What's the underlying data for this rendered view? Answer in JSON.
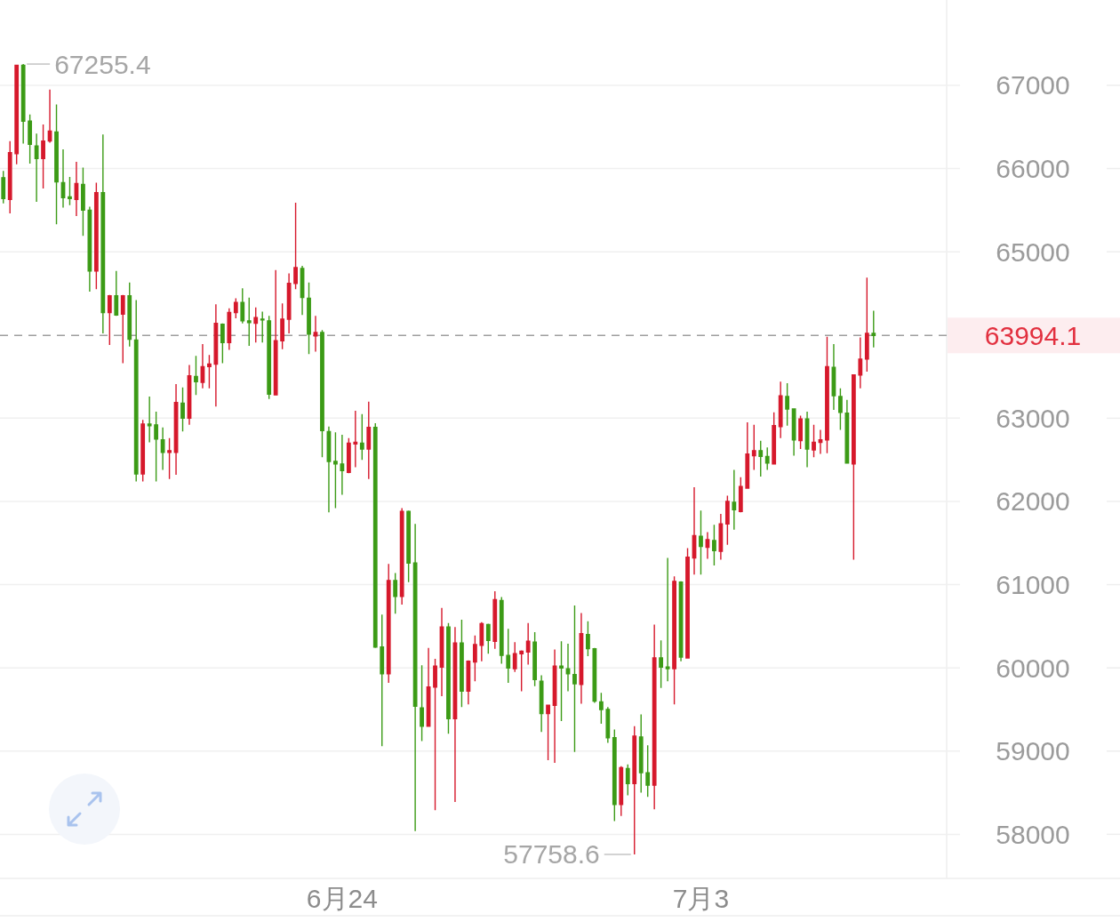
{
  "chart_data": {
    "type": "candlestick",
    "categories": [
      null,
      null,
      null,
      null,
      null,
      null,
      null,
      null,
      null,
      null,
      null,
      null,
      null,
      null,
      null,
      null,
      null,
      null,
      null,
      null,
      null,
      null,
      null,
      null,
      null,
      null,
      null,
      null,
      null,
      null,
      null,
      null,
      null,
      null,
      null,
      null,
      null,
      null,
      null,
      null,
      null,
      null,
      null,
      null,
      null,
      null,
      null,
      null,
      null,
      null,
      null,
      "6月24",
      null,
      null,
      null,
      null,
      null,
      null,
      null,
      null,
      null,
      null,
      null,
      null,
      null,
      null,
      null,
      null,
      null,
      null,
      null,
      null,
      null,
      null,
      null,
      null,
      null,
      null,
      null,
      null,
      null,
      null,
      null,
      null,
      null,
      null,
      null,
      null,
      null,
      null,
      null,
      null,
      null,
      null,
      null,
      null,
      null,
      null,
      null,
      null,
      null,
      null,
      null,
      null,
      null,
      "7月3",
      null,
      null,
      null,
      null,
      null,
      null,
      null,
      null,
      null,
      null,
      null,
      null,
      null,
      null,
      null,
      null,
      null,
      null,
      null,
      null,
      null,
      null,
      null,
      null,
      null,
      null
    ],
    "ohlc": [
      [
        65890,
        65970,
        65580,
        65640
      ],
      [
        65630,
        66330,
        65460,
        66190
      ],
      [
        66180,
        67240,
        66050,
        67240
      ],
      [
        67240,
        67255.4,
        66300,
        66570
      ],
      [
        66570,
        66650,
        66060,
        66290
      ],
      [
        66270,
        66420,
        65600,
        66120
      ],
      [
        66120,
        66530,
        65760,
        66330
      ],
      [
        66330,
        66950,
        66310,
        66450
      ],
      [
        66440,
        66770,
        65330,
        65840
      ],
      [
        65830,
        66230,
        65530,
        65650
      ],
      [
        65660,
        65900,
        65560,
        65640
      ],
      [
        65630,
        66080,
        65430,
        65820
      ],
      [
        65810,
        66010,
        65190,
        65500
      ],
      [
        65500,
        65540,
        64520,
        64770
      ],
      [
        64770,
        65830,
        64550,
        65710
      ],
      [
        65710,
        66410,
        64020,
        64270
      ],
      [
        64270,
        64480,
        63880,
        64470
      ],
      [
        64470,
        64770,
        64230,
        64240
      ],
      [
        64250,
        64480,
        63660,
        64470
      ],
      [
        64470,
        64630,
        63860,
        63950
      ],
      [
        63940,
        64420,
        62240,
        62330
      ],
      [
        62330,
        62980,
        62240,
        62930
      ],
      [
        62930,
        63260,
        62710,
        62910
      ],
      [
        62920,
        63080,
        62240,
        62750
      ],
      [
        62740,
        62890,
        62380,
        62590
      ],
      [
        62590,
        62760,
        62270,
        62610
      ],
      [
        62590,
        63410,
        62320,
        63190
      ],
      [
        63180,
        63370,
        62840,
        63000
      ],
      [
        63000,
        63640,
        62920,
        63510
      ],
      [
        63500,
        63750,
        63280,
        63440
      ],
      [
        63430,
        63890,
        63360,
        63620
      ],
      [
        63620,
        63760,
        63360,
        63650
      ],
      [
        63650,
        64370,
        63140,
        64140
      ],
      [
        64130,
        64140,
        63660,
        63910
      ],
      [
        63910,
        64320,
        63820,
        64270
      ],
      [
        64270,
        64440,
        64200,
        64390
      ],
      [
        64390,
        64560,
        64140,
        64170
      ],
      [
        64170,
        64450,
        63870,
        64150
      ],
      [
        64140,
        64330,
        63910,
        64210
      ],
      [
        64190,
        64280,
        63910,
        64180
      ],
      [
        64170,
        64230,
        63230,
        63290
      ],
      [
        63280,
        64780,
        63280,
        63930
      ],
      [
        63930,
        64380,
        63830,
        64190
      ],
      [
        64190,
        64740,
        64020,
        64620
      ],
      [
        64620,
        65590,
        64550,
        64810
      ],
      [
        64800,
        64830,
        64240,
        64450
      ],
      [
        64440,
        64630,
        63770,
        64010
      ],
      [
        63990,
        64230,
        63800,
        64030
      ],
      [
        64030,
        64060,
        62530,
        62850
      ],
      [
        62840,
        62900,
        61870,
        62480
      ],
      [
        62480,
        62830,
        61920,
        62450
      ],
      [
        62450,
        62800,
        62080,
        62370
      ],
      [
        62350,
        62760,
        62340,
        62700
      ],
      [
        62690,
        63090,
        62410,
        62710
      ],
      [
        62700,
        63050,
        62500,
        62630
      ],
      [
        62630,
        63200,
        62270,
        62890
      ],
      [
        62890,
        62940,
        60240,
        60250
      ],
      [
        60250,
        60640,
        59060,
        59930
      ],
      [
        59930,
        61250,
        59820,
        61050
      ],
      [
        61050,
        61140,
        60650,
        60860
      ],
      [
        60860,
        61920,
        60760,
        61880
      ],
      [
        61880,
        61890,
        61030,
        61260
      ],
      [
        61260,
        61730,
        58040,
        59540
      ],
      [
        59520,
        60030,
        59120,
        59300
      ],
      [
        59300,
        60240,
        59300,
        59770
      ],
      [
        59770,
        60110,
        58290,
        60020
      ],
      [
        60010,
        60720,
        59660,
        60490
      ],
      [
        60490,
        60540,
        59210,
        59390
      ],
      [
        59390,
        60490,
        58390,
        60300
      ],
      [
        60300,
        60580,
        59530,
        59720
      ],
      [
        59720,
        60090,
        59560,
        60080
      ],
      [
        60070,
        60390,
        59840,
        60280
      ],
      [
        60270,
        60550,
        60080,
        60530
      ],
      [
        60520,
        60530,
        60170,
        60330
      ],
      [
        60320,
        60920,
        60230,
        60820
      ],
      [
        60810,
        60850,
        60050,
        60150
      ],
      [
        60150,
        60470,
        59820,
        60000
      ],
      [
        59990,
        60310,
        59950,
        60170
      ],
      [
        60170,
        60210,
        59720,
        60200
      ],
      [
        60190,
        60540,
        60040,
        60320
      ],
      [
        60310,
        60430,
        59780,
        59860
      ],
      [
        59840,
        59910,
        59230,
        59450
      ],
      [
        59450,
        59550,
        58890,
        59550
      ],
      [
        59550,
        60220,
        58860,
        60020
      ],
      [
        60020,
        60320,
        59360,
        60000
      ],
      [
        59990,
        60290,
        59720,
        59930
      ],
      [
        59920,
        60750,
        58990,
        59810
      ],
      [
        59800,
        60660,
        59570,
        60410
      ],
      [
        60400,
        60560,
        60140,
        60230
      ],
      [
        60230,
        60240,
        59580,
        59600
      ],
      [
        59590,
        59700,
        59330,
        59500
      ],
      [
        59500,
        59530,
        59100,
        59160
      ],
      [
        59160,
        59260,
        58160,
        58360
      ],
      [
        58360,
        58820,
        58220,
        58800
      ],
      [
        58790,
        58840,
        58470,
        58610
      ],
      [
        58610,
        59300,
        57758.6,
        59180
      ],
      [
        59170,
        59440,
        58500,
        58740
      ],
      [
        58740,
        59070,
        58450,
        58590
      ],
      [
        58590,
        60520,
        58300,
        60120
      ],
      [
        60120,
        60330,
        59760,
        60010
      ],
      [
        60010,
        61320,
        59840,
        59990
      ],
      [
        59990,
        61100,
        59560,
        61040
      ],
      [
        61030,
        61040,
        60080,
        60130
      ],
      [
        60120,
        61440,
        60120,
        61330
      ],
      [
        61320,
        62170,
        61120,
        61590
      ],
      [
        61580,
        61890,
        61120,
        61460
      ],
      [
        61450,
        61630,
        61310,
        61540
      ],
      [
        61530,
        61720,
        61230,
        61410
      ],
      [
        61400,
        61850,
        61300,
        61730
      ],
      [
        61730,
        62070,
        61480,
        62000
      ],
      [
        61990,
        62380,
        61660,
        61900
      ],
      [
        61880,
        62290,
        61870,
        62180
      ],
      [
        62160,
        62950,
        62160,
        62570
      ],
      [
        62550,
        62920,
        62380,
        62610
      ],
      [
        62610,
        62730,
        62300,
        62540
      ],
      [
        62540,
        62650,
        62380,
        62460
      ],
      [
        62450,
        63070,
        62450,
        62910
      ],
      [
        62900,
        63440,
        62760,
        63270
      ],
      [
        63260,
        63420,
        62910,
        63110
      ],
      [
        63110,
        63110,
        62550,
        62740
      ],
      [
        62730,
        63030,
        62630,
        62990
      ],
      [
        62990,
        63080,
        62410,
        62630
      ],
      [
        62620,
        62920,
        62530,
        62710
      ],
      [
        62710,
        62860,
        62570,
        62740
      ],
      [
        62740,
        63980,
        62580,
        63620
      ],
      [
        63610,
        63890,
        63100,
        63270
      ],
      [
        63260,
        63360,
        62860,
        63070
      ],
      [
        63060,
        63220,
        62460,
        62460
      ],
      [
        62450,
        63520,
        61300,
        63520
      ],
      [
        63520,
        63970,
        63360,
        63710
      ],
      [
        63710,
        64690,
        63560,
        64020
      ],
      [
        64020,
        64290,
        63850,
        63994.1
      ]
    ],
    "colors": [
      "#3c9b16",
      "#d6192c",
      "#d6192c",
      "#3c9b16",
      "#3c9b16",
      "#3c9b16",
      "#d6192c",
      "#d6192c",
      "#3c9b16",
      "#3c9b16",
      "#3c9b16",
      "#d6192c",
      "#3c9b16",
      "#3c9b16",
      "#d6192c",
      "#3c9b16",
      "#d6192c",
      "#3c9b16",
      "#d6192c",
      "#3c9b16",
      "#3c9b16",
      "#d6192c",
      "#3c9b16",
      "#3c9b16",
      "#3c9b16",
      "#d6192c",
      "#d6192c",
      "#3c9b16",
      "#d6192c",
      "#3c9b16",
      "#d6192c",
      "#d6192c",
      "#d6192c",
      "#3c9b16",
      "#d6192c",
      "#d6192c",
      "#3c9b16",
      "#3c9b16",
      "#d6192c",
      "#3c9b16",
      "#3c9b16",
      "#d6192c",
      "#d6192c",
      "#d6192c",
      "#d6192c",
      "#3c9b16",
      "#3c9b16",
      "#d6192c",
      "#3c9b16",
      "#3c9b16",
      "#3c9b16",
      "#3c9b16",
      "#d6192c",
      "#d6192c",
      "#3c9b16",
      "#d6192c",
      "#3c9b16",
      "#3c9b16",
      "#d6192c",
      "#3c9b16",
      "#d6192c",
      "#3c9b16",
      "#3c9b16",
      "#3c9b16",
      "#d6192c",
      "#d6192c",
      "#d6192c",
      "#3c9b16",
      "#d6192c",
      "#3c9b16",
      "#d6192c",
      "#d6192c",
      "#d6192c",
      "#3c9b16",
      "#d6192c",
      "#3c9b16",
      "#3c9b16",
      "#d6192c",
      "#d6192c",
      "#d6192c",
      "#3c9b16",
      "#3c9b16",
      "#d6192c",
      "#d6192c",
      "#3c9b16",
      "#3c9b16",
      "#3c9b16",
      "#d6192c",
      "#3c9b16",
      "#3c9b16",
      "#3c9b16",
      "#3c9b16",
      "#3c9b16",
      "#d6192c",
      "#3c9b16",
      "#d6192c",
      "#3c9b16",
      "#3c9b16",
      "#d6192c",
      "#3c9b16",
      "#3c9b16",
      "#d6192c",
      "#3c9b16",
      "#d6192c",
      "#d6192c",
      "#3c9b16",
      "#d6192c",
      "#3c9b16",
      "#d6192c",
      "#d6192c",
      "#3c9b16",
      "#d6192c",
      "#d6192c",
      "#d6192c",
      "#3c9b16",
      "#3c9b16",
      "#d6192c",
      "#d6192c",
      "#3c9b16",
      "#3c9b16",
      "#d6192c",
      "#3c9b16",
      "#d6192c",
      "#d6192c",
      "#d6192c",
      "#3c9b16",
      "#3c9b16",
      "#3c9b16",
      "#d6192c",
      "#d6192c",
      "#d6192c",
      "#3c9b16"
    ],
    "ylim": [
      57470,
      68025
    ],
    "yticks": [
      58000,
      59000,
      60000,
      61000,
      62000,
      63000,
      65000,
      66000,
      67000
    ],
    "grid": "y",
    "ref_lines": [
      {
        "axis": "y",
        "value": 63994.1,
        "label": "63994.1",
        "color": "#9e9e9e",
        "line_style": "dashed"
      }
    ],
    "annotations": [
      "67255.4",
      "57758.6"
    ]
  }
}
